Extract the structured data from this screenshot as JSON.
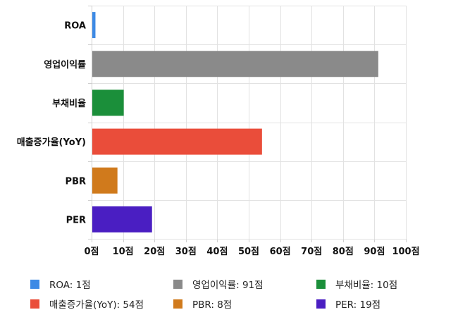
{
  "chart_data": {
    "type": "bar",
    "orientation": "horizontal",
    "categories": [
      "ROA",
      "영업이익률",
      "부채비율",
      "매출증가율(YoY)",
      "PBR",
      "PER"
    ],
    "values": [
      1,
      91,
      10,
      54,
      8,
      19
    ],
    "colors": [
      "#3d8ae5",
      "#8a8a8a",
      "#1b8f3a",
      "#ea4d3a",
      "#d07a1c",
      "#4a1ec2"
    ],
    "xlim": [
      0,
      100
    ],
    "x_ticks": [
      "0점",
      "10점",
      "20점",
      "30점",
      "40점",
      "50점",
      "60점",
      "70점",
      "80점",
      "90점",
      "100점"
    ],
    "grid": true,
    "legend_position": "bottom",
    "legend": [
      "ROA: 1점",
      "영업이익률: 91점",
      "부채비율: 10점",
      "매출증가율(YoY): 54점",
      "PBR: 8점",
      "PER: 19점"
    ]
  }
}
